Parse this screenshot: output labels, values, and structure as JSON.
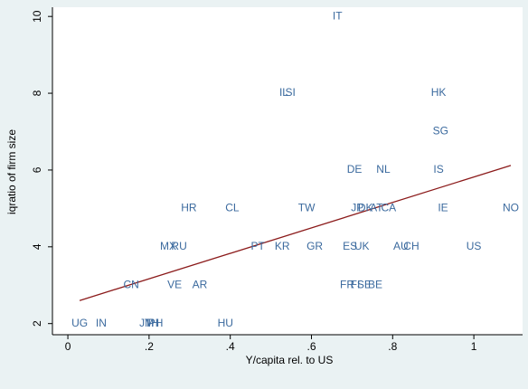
{
  "chart_data": {
    "type": "scatter",
    "xlabel": "Y/capita rel. to US",
    "ylabel": "iqratio of firm size",
    "labels": [
      "IT",
      "IL",
      "SI",
      "HK",
      "SG",
      "DE",
      "NL",
      "IS",
      "HR",
      "CL",
      "TW",
      "JP",
      "DK",
      "AT",
      "CA",
      "IE",
      "NO",
      "MX",
      "RU",
      "PT",
      "KR",
      "GR",
      "ES",
      "UK",
      "AU",
      "CH",
      "US",
      "CN",
      "VE",
      "AR",
      "FR",
      "FI",
      "SE",
      "BE",
      "UG",
      "IN",
      "JM",
      "TH",
      "PH",
      "HU"
    ],
    "x": [
      0.664,
      0.532,
      0.548,
      0.913,
      0.918,
      0.706,
      0.777,
      0.913,
      0.298,
      0.405,
      0.588,
      0.713,
      0.733,
      0.76,
      0.79,
      0.924,
      1.091,
      0.247,
      0.274,
      0.468,
      0.528,
      0.608,
      0.695,
      0.724,
      0.82,
      0.846,
      1.0,
      0.156,
      0.263,
      0.325,
      0.688,
      0.708,
      0.73,
      0.757,
      0.029,
      0.082,
      0.194,
      0.207,
      0.216,
      0.388
    ],
    "values": [
      10,
      8,
      8,
      8,
      7,
      6,
      6,
      6,
      5,
      5,
      5,
      5,
      5,
      5,
      5,
      5,
      5,
      4,
      4,
      4,
      4,
      4,
      4,
      4,
      4,
      4,
      4,
      3,
      3,
      3,
      3,
      3,
      3,
      3,
      2,
      2,
      2,
      2,
      2,
      2
    ],
    "color": "#3b6a9e",
    "fit": {
      "x": [
        0.029,
        1.091
      ],
      "values": [
        2.6,
        6.12
      ],
      "color": "#8b1a1a"
    },
    "xlim": [
      -0.038,
      1.12
    ],
    "ylim": [
      1.71,
      10.24
    ],
    "xticks": [
      0,
      {
        "value": 0.2,
        "label": ".2"
      },
      {
        "value": 0.4,
        "label": ".4"
      },
      {
        "value": 0.6,
        "label": ".6"
      },
      {
        "value": 0.8,
        "label": ".8"
      },
      1
    ],
    "yticks": [
      2,
      4,
      6,
      8,
      10
    ]
  }
}
